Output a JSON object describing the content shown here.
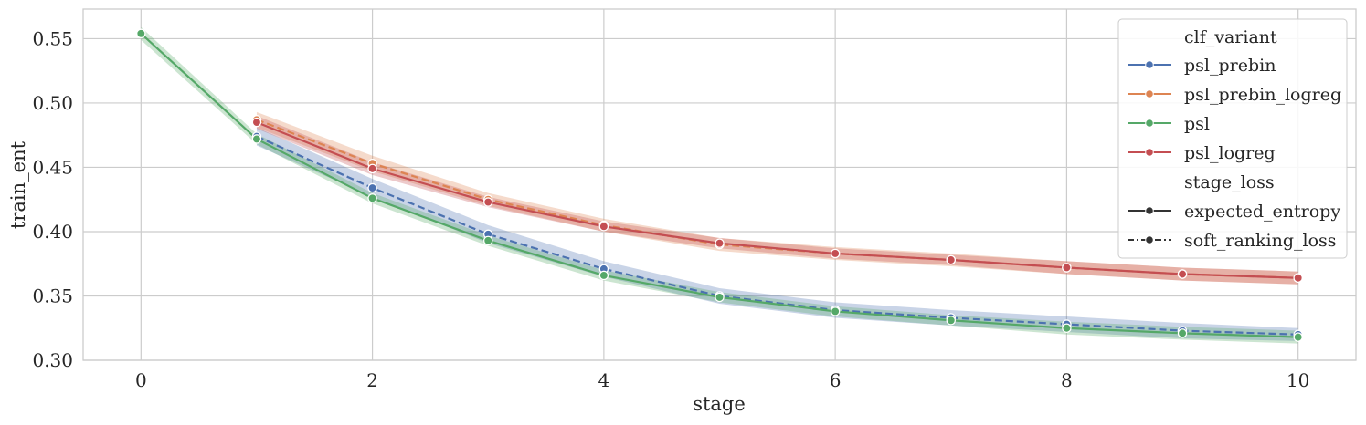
{
  "chart_data": {
    "type": "line",
    "xlabel": "stage",
    "ylabel": "train_ent",
    "xlim": [
      -0.5,
      10.5
    ],
    "ylim": [
      0.3,
      0.573
    ],
    "xticks": [
      "0",
      "2",
      "4",
      "6",
      "8",
      "10"
    ],
    "yticks": [
      "0.30",
      "0.35",
      "0.40",
      "0.45",
      "0.50",
      "0.55"
    ],
    "grid": true,
    "legend_position": "top-right",
    "legend": {
      "hue_title": "clf_variant",
      "style_title": "stage_loss",
      "hue_entries": [
        {
          "name": "psl_prebin",
          "color": "#4c72b0"
        },
        {
          "name": "psl_prebin_logreg",
          "color": "#dd8452"
        },
        {
          "name": "psl",
          "color": "#55a868"
        },
        {
          "name": "psl_logreg",
          "color": "#c44e52"
        }
      ],
      "style_entries": [
        {
          "name": "expected_entropy",
          "dash": "solid"
        },
        {
          "name": "soft_ranking_loss",
          "dash": "dashed"
        }
      ]
    },
    "series": [
      {
        "variant": "psl_prebin",
        "stage_loss": "soft_ranking_loss",
        "color": "#4c72b0",
        "dash": "dashed",
        "x": [
          1,
          2,
          3,
          4,
          5,
          6,
          7,
          8,
          9,
          10
        ],
        "values": [
          0.474,
          0.434,
          0.398,
          0.371,
          0.35,
          0.339,
          0.333,
          0.328,
          0.323,
          0.32
        ],
        "ci": [
          0.007,
          0.007,
          0.007,
          0.006,
          0.006,
          0.006,
          0.006,
          0.006,
          0.006,
          0.005
        ]
      },
      {
        "variant": "psl_prebin_logreg",
        "stage_loss": "soft_ranking_loss",
        "color": "#dd8452",
        "dash": "dashed",
        "x": [
          1,
          2,
          3,
          4,
          5,
          6,
          7,
          8,
          9,
          10
        ],
        "values": [
          0.487,
          0.453,
          0.425,
          0.405,
          0.39,
          0.383,
          0.378,
          0.372,
          0.367,
          0.364
        ],
        "ci": [
          0.006,
          0.006,
          0.005,
          0.005,
          0.005,
          0.005,
          0.005,
          0.005,
          0.005,
          0.005
        ]
      },
      {
        "variant": "psl",
        "stage_loss": "expected_entropy",
        "color": "#55a868",
        "dash": "solid",
        "x": [
          0,
          1,
          2,
          3,
          4,
          5,
          6,
          7,
          8,
          9,
          10
        ],
        "values": [
          0.554,
          0.472,
          0.426,
          0.393,
          0.366,
          0.349,
          0.338,
          0.331,
          0.325,
          0.321,
          0.318
        ],
        "ci": [
          0.005,
          0.004,
          0.004,
          0.004,
          0.004,
          0.004,
          0.004,
          0.004,
          0.005,
          0.005,
          0.005
        ]
      },
      {
        "variant": "psl_logreg",
        "stage_loss": "expected_entropy",
        "color": "#c44e52",
        "dash": "solid",
        "x": [
          1,
          2,
          3,
          4,
          5,
          6,
          7,
          8,
          9,
          10
        ],
        "values": [
          0.485,
          0.449,
          0.423,
          0.404,
          0.391,
          0.383,
          0.378,
          0.372,
          0.367,
          0.364
        ],
        "ci": [
          0.005,
          0.005,
          0.004,
          0.004,
          0.004,
          0.004,
          0.004,
          0.005,
          0.005,
          0.005
        ]
      }
    ]
  }
}
